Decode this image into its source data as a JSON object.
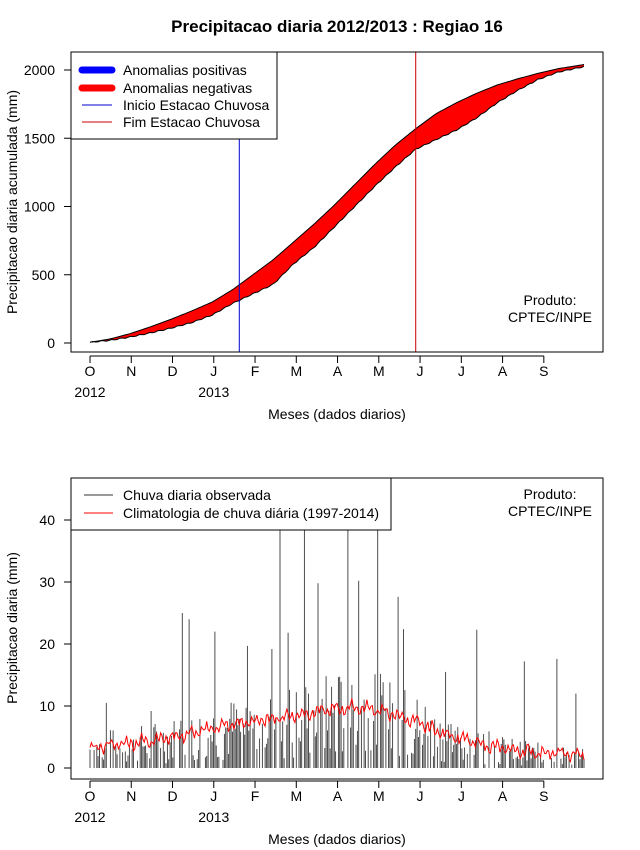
{
  "chart_data": [
    {
      "type": "area",
      "title": "Precipitacao diaria 2012/2013 : Regiao 16",
      "xlabel": "Meses (dados diarios)",
      "ylabel": "Precipitacao diaria acumulada (mm)",
      "ylim": [
        0,
        2050
      ],
      "yticks": [
        0,
        500,
        1000,
        1500,
        2000
      ],
      "month_ticks": [
        "O",
        "N",
        "D",
        "J",
        "F",
        "M",
        "A",
        "M",
        "J",
        "J",
        "A",
        "S"
      ],
      "year_labels": [
        {
          "month_index": 0,
          "label": "2012"
        },
        {
          "month_index": 3,
          "label": "2013"
        }
      ],
      "legend": [
        {
          "label": "Anomalias positivas",
          "color": "#0000ff",
          "style": "thick"
        },
        {
          "label": "Anomalias negativas",
          "color": "#ff0000",
          "style": "thick"
        },
        {
          "label": "Inicio Estacao Chuvosa",
          "color": "#0000cc",
          "style": "thin"
        },
        {
          "label": "Fim Estacao Chuvosa",
          "color": "#cc0000",
          "style": "thin"
        }
      ],
      "rain_season_start_day": 110,
      "rain_season_end_day": 240,
      "climatology_accumulated": {
        "day": [
          0,
          15,
          30,
          45,
          60,
          75,
          90,
          105,
          120,
          135,
          150,
          165,
          180,
          195,
          210,
          225,
          240,
          255,
          270,
          285,
          300,
          315,
          330,
          345,
          364
        ],
        "mm": [
          5,
          30,
          70,
          120,
          175,
          235,
          300,
          390,
          500,
          610,
          740,
          870,
          1010,
          1160,
          1310,
          1450,
          1570,
          1680,
          1760,
          1830,
          1890,
          1935,
          1975,
          2010,
          2040
        ]
      },
      "observed_accumulated": {
        "day": [
          0,
          15,
          30,
          45,
          60,
          75,
          90,
          105,
          120,
          135,
          150,
          165,
          180,
          195,
          210,
          225,
          240,
          255,
          270,
          285,
          300,
          315,
          330,
          345,
          364
        ],
        "mm": [
          5,
          20,
          45,
          75,
          110,
          150,
          205,
          290,
          360,
          430,
          580,
          700,
          850,
          1000,
          1150,
          1290,
          1420,
          1490,
          1560,
          1650,
          1760,
          1850,
          1930,
          1985,
          2025
        ]
      },
      "credit": {
        "line1": "Produto:",
        "line2": "CPTEC/INPE"
      }
    },
    {
      "type": "line",
      "xlabel": "Meses (dados diarios)",
      "ylabel": "Precipitacao diaria (mm)",
      "ylim": [
        0,
        45
      ],
      "yticks": [
        0,
        10,
        20,
        30,
        40
      ],
      "month_ticks": [
        "O",
        "N",
        "D",
        "J",
        "F",
        "M",
        "A",
        "M",
        "J",
        "J",
        "A",
        "S"
      ],
      "year_labels": [
        {
          "month_index": 0,
          "label": "2012"
        },
        {
          "month_index": 3,
          "label": "2013"
        }
      ],
      "legend": [
        {
          "label": "Chuva diaria observada",
          "color": "#333333"
        },
        {
          "label": "Climatologia de chuva diária (1997-2014)",
          "color": "#ff0000"
        }
      ],
      "daily_peaks": [
        {
          "day": 12,
          "mm": 10.5
        },
        {
          "day": 45,
          "mm": 9.2
        },
        {
          "day": 68,
          "mm": 25.0
        },
        {
          "day": 73,
          "mm": 24.0
        },
        {
          "day": 92,
          "mm": 22.0
        },
        {
          "day": 116,
          "mm": 19.7
        },
        {
          "day": 134,
          "mm": 19.2
        },
        {
          "day": 140,
          "mm": 40.0
        },
        {
          "day": 146,
          "mm": 21.8
        },
        {
          "day": 158,
          "mm": 40.0
        },
        {
          "day": 168,
          "mm": 29.8
        },
        {
          "day": 190,
          "mm": 40.0
        },
        {
          "day": 198,
          "mm": 30.2
        },
        {
          "day": 212,
          "mm": 40.0
        },
        {
          "day": 227,
          "mm": 27.6
        },
        {
          "day": 231,
          "mm": 22.4
        },
        {
          "day": 262,
          "mm": 15.5
        },
        {
          "day": 285,
          "mm": 22.3
        },
        {
          "day": 320,
          "mm": 17.2
        },
        {
          "day": 344,
          "mm": 17.6
        },
        {
          "day": 358,
          "mm": 12.0
        }
      ],
      "climatology_daily": {
        "day": [
          0,
          15,
          30,
          45,
          60,
          75,
          90,
          105,
          120,
          135,
          150,
          165,
          180,
          195,
          210,
          225,
          240,
          255,
          270,
          285,
          300,
          315,
          330,
          345,
          364
        ],
        "mm": [
          3.0,
          3.8,
          4.0,
          4.5,
          5.0,
          5.5,
          6.5,
          7.0,
          7.5,
          8.0,
          8.5,
          9.0,
          9.5,
          9.8,
          9.5,
          8.5,
          7.5,
          6.0,
          5.0,
          4.0,
          3.3,
          2.8,
          2.5,
          2.4,
          2.0
        ]
      },
      "credit": {
        "line1": "Produto:",
        "line2": "CPTEC/INPE"
      }
    }
  ]
}
